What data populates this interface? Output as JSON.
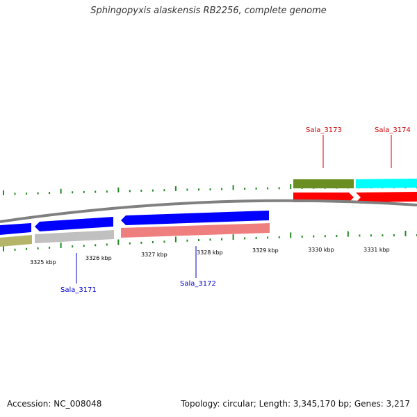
{
  "map": {
    "title": "Sphingopyxis alaskensis RB2256, complete genome",
    "accession": "Accession: NC_008048",
    "summary": "Topology: circular; Length: 3,345,170 bp; Genes: 3,217"
  },
  "scale": {
    "tick_labels": [
      "3325 kbp",
      "3326 kbp",
      "3327 kbp",
      "3328 kbp",
      "3329 kbp",
      "3330 kbp",
      "3331 kbp"
    ]
  },
  "genes": {
    "sala_3171": {
      "label": "Sala_3171",
      "strand": "-",
      "color": "#0000cc"
    },
    "sala_3172": {
      "label": "Sala_3172",
      "strand": "-",
      "color": "#0000cc"
    },
    "sala_3173": {
      "label": "Sala_3173",
      "strand": "+",
      "color": "#cc0000"
    },
    "sala_3174": {
      "label": "Sala_3174",
      "strand": "+",
      "color": "#cc0000"
    }
  },
  "colors": {
    "forward_cds": "#ff0000",
    "reverse_cds": "#0000ff",
    "backbone": "#888888",
    "tick": "#228b22",
    "cog_olive": "#6b8e23",
    "cog_cyan": "#00ffff",
    "cog_khaki": "#b5b56a",
    "cog_gray": "#c0c0c0",
    "cog_pink": "#ef7f7f"
  }
}
